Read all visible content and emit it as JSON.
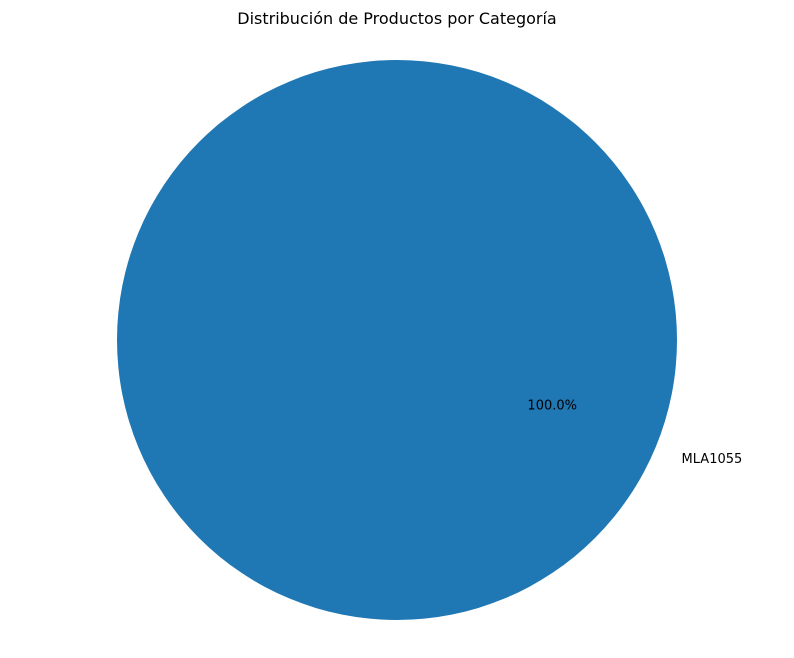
{
  "chart_data": {
    "type": "pie",
    "title": "Distribución de Productos por Categoría",
    "slices": [
      {
        "label": "MLA1055",
        "value": 100.0,
        "percent_label": "100.0%",
        "color": "#1f77b4"
      }
    ]
  }
}
